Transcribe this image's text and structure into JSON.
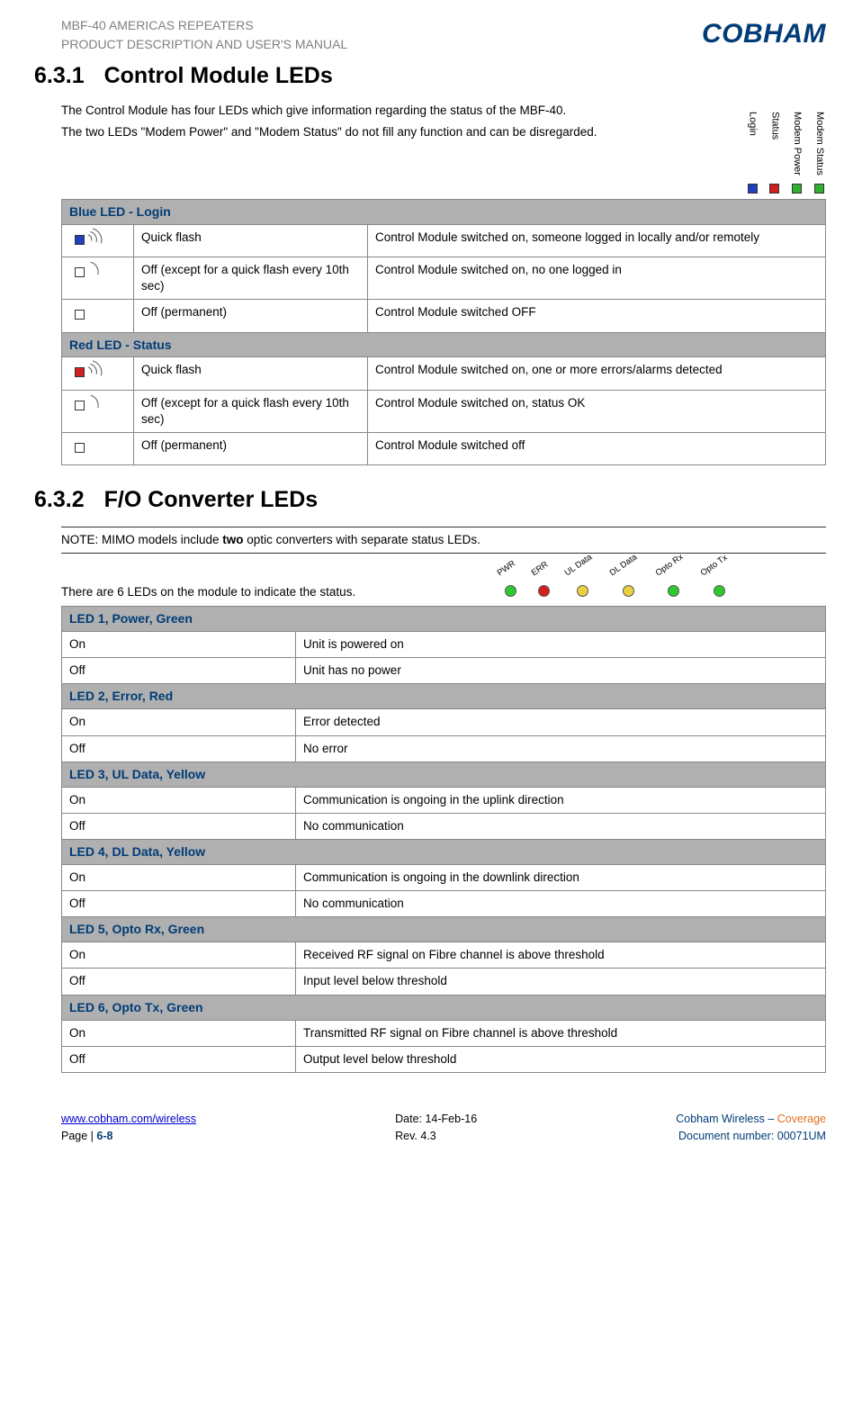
{
  "header": {
    "line1": "MBF-40 AMERICAS REPEATERS",
    "line2": "PRODUCT DESCRIPTION AND USER'S MANUAL",
    "logo": "COBHAM"
  },
  "sec1": {
    "num": "6.3.1",
    "title": "Control Module LEDs",
    "para1": "The Control Module has four LEDs which give information regarding the status of the MBF-40.",
    "para2": "The two LEDs \"Modem Power\" and \"Modem Status\" do not fill any function and can be disregarded.",
    "leds": [
      {
        "label": "Login",
        "color": "#2040c0"
      },
      {
        "label": "Status",
        "color": "#d02020"
      },
      {
        "label": "Modem Power",
        "color": "#30b030"
      },
      {
        "label": "Modem Status",
        "color": "#30b030"
      }
    ]
  },
  "table1": {
    "groups": [
      {
        "header": "Blue LED - Login",
        "color": "#2040c0",
        "rows": [
          {
            "icon": "flash",
            "state": "Quick flash",
            "desc": "Control Module switched on, someone logged in locally and/or remotely"
          },
          {
            "icon": "blip",
            "state": "Off (except for a quick flash every 10th sec)",
            "desc": "Control Module switched on, no one logged in"
          },
          {
            "icon": "off",
            "state": "Off  (permanent)",
            "desc": "Control Module switched OFF"
          }
        ]
      },
      {
        "header": "Red LED - Status",
        "color": "#d02020",
        "rows": [
          {
            "icon": "flash",
            "state": "Quick flash",
            "desc": "Control Module switched on, one or more errors/alarms detected"
          },
          {
            "icon": "blip",
            "state": "Off (except for a quick flash every 10th sec)",
            "desc": "Control Module switched on, status OK"
          },
          {
            "icon": "off",
            "state": "Off  (permanent)",
            "desc": "Control Module switched off"
          }
        ]
      }
    ]
  },
  "sec2": {
    "num": "6.3.2",
    "title": "F/O Converter LEDs",
    "note_pre": "NOTE: MIMO models include ",
    "note_bold": "two",
    "note_post": " optic converters with separate status LEDs.",
    "para": "There are 6 LEDs on the module to indicate the status.",
    "leds": [
      {
        "label": "PWR",
        "cls": "lc-grn"
      },
      {
        "label": "ERR",
        "cls": "lc-red"
      },
      {
        "label": "UL Data",
        "cls": "lc-yel"
      },
      {
        "label": "DL Data",
        "cls": "lc-yel"
      },
      {
        "label": "Opto Rx",
        "cls": "lc-grn"
      },
      {
        "label": "Opto Tx",
        "cls": "lc-grn"
      }
    ]
  },
  "table2": {
    "groups": [
      {
        "header": "LED 1, Power, Green",
        "rows": [
          {
            "state": "On",
            "desc": "Unit is powered on"
          },
          {
            "state": "Off",
            "desc": "Unit has no power"
          }
        ]
      },
      {
        "header": "LED 2, Error, Red",
        "rows": [
          {
            "state": "On",
            "desc": "Error detected"
          },
          {
            "state": "Off",
            "desc": "No error"
          }
        ]
      },
      {
        "header": "LED 3, UL Data, Yellow",
        "rows": [
          {
            "state": "On",
            "desc": "Communication is ongoing in the uplink direction"
          },
          {
            "state": "Off",
            "desc": "No communication"
          }
        ]
      },
      {
        "header": "LED 4, DL Data, Yellow",
        "rows": [
          {
            "state": "On",
            "desc": "Communication is ongoing in the downlink direction"
          },
          {
            "state": "Off",
            "desc": "No communication"
          }
        ]
      },
      {
        "header": "LED 5, Opto Rx, Green",
        "rows": [
          {
            "state": "On",
            "desc": "Received RF signal on Fibre channel is above threshold"
          },
          {
            "state": "Off",
            "desc": "Input level below threshold"
          }
        ]
      },
      {
        "header": "LED 6, Opto Tx, Green",
        "rows": [
          {
            "state": "On",
            "desc": "Transmitted RF signal on Fibre channel is above threshold"
          },
          {
            "state": "Off",
            "desc": "Output level below threshold"
          }
        ]
      }
    ]
  },
  "footer": {
    "left1": "www.cobham.com/wireless",
    "left2_pre": "Page | ",
    "left2_num": "6-8",
    "mid1": "Date: 14-Feb-16",
    "mid2": "Rev. 4.3",
    "right1_pre": "Cobham Wireless – ",
    "right1_orange": "Coverage",
    "right2": "Document number: 00071UM"
  }
}
